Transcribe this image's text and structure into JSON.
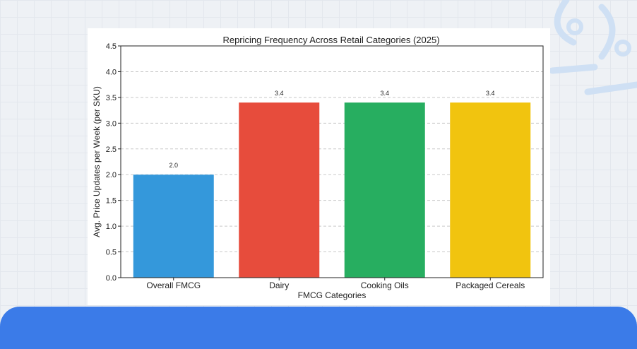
{
  "colors": {
    "page_bg": "#eef1f5",
    "card_bg": "#ffffff",
    "band": "#3b7be8",
    "deco": "#cfe0f4"
  },
  "chart_data": {
    "type": "bar",
    "title": "Repricing Frequency Across Retail Categories (2025)",
    "xlabel": "FMCG Categories",
    "ylabel": "Avg. Price Updates per Week (per SKU)",
    "categories": [
      "Overall FMCG",
      "Dairy",
      "Cooking Oils",
      "Packaged Cereals"
    ],
    "values": [
      2.0,
      3.4,
      3.4,
      3.4
    ],
    "value_labels": [
      "2.0",
      "3.4",
      "3.4",
      "3.4"
    ],
    "bar_colors": [
      "#3498db",
      "#e74c3c",
      "#27ae60",
      "#f1c40f"
    ],
    "ylim": [
      0,
      4.5
    ],
    "yticks": [
      "0.0",
      "0.5",
      "1.0",
      "1.5",
      "2.0",
      "2.5",
      "3.0",
      "3.5",
      "4.0",
      "4.5"
    ],
    "grid": "horizontal dashed",
    "legend": "none"
  }
}
